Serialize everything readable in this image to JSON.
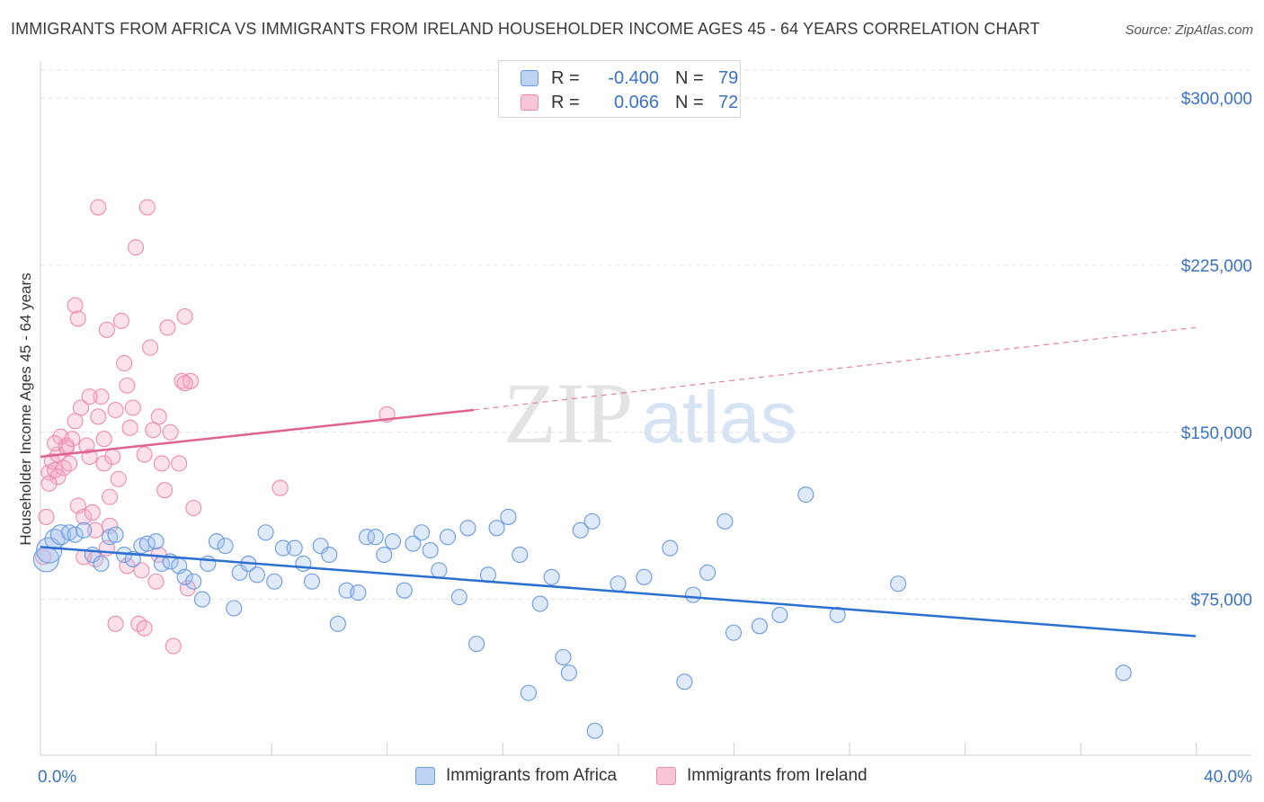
{
  "title": "IMMIGRANTS FROM AFRICA VS IMMIGRANTS FROM IRELAND HOUSEHOLDER INCOME AGES 45 - 64 YEARS CORRELATION CHART",
  "source": "Source: ZipAtlas.com",
  "watermark": {
    "zip": "ZIP",
    "atlas": "atlas"
  },
  "legend": {
    "rows": [
      {
        "r_label": "R =",
        "r_value": "-0.400",
        "n_label": "N =",
        "n_value": "79"
      },
      {
        "r_label": "R =",
        "r_value": "0.066",
        "n_label": "N =",
        "n_value": "72"
      }
    ]
  },
  "chart_data": {
    "type": "scatter",
    "title": "IMMIGRANTS FROM AFRICA VS IMMIGRANTS FROM IRELAND HOUSEHOLDER INCOME AGES 45 - 64 YEARS CORRELATION CHART",
    "xlabel": "",
    "ylabel": "Householder Income Ages 45 - 64 years",
    "xlim": [
      0,
      40
    ],
    "ylim": [
      5000,
      315000
    ],
    "x_tick_labels": [
      "0.0%",
      "40.0%"
    ],
    "y_ticks": [
      75000,
      150000,
      225000,
      300000
    ],
    "y_tick_labels": [
      "$75,000",
      "$150,000",
      "$225,000",
      "$300,000"
    ],
    "grid": true,
    "legend_position": "top-center",
    "colors": {
      "africa": "#6a9ae0",
      "ireland": "#f08bb0",
      "africa_line": "#2a6fd1",
      "ireland_line": "#e0628f"
    },
    "series": [
      {
        "name": "Immigrants from Africa",
        "r": -0.4,
        "n": 79,
        "trend": {
          "x0": 0,
          "y0": 98500,
          "x1": 40,
          "y1": 58500
        },
        "points": [
          [
            0.2,
            93000
          ],
          [
            0.3,
            97000
          ],
          [
            0.5,
            102000
          ],
          [
            0.7,
            104000
          ],
          [
            1.0,
            105000
          ],
          [
            1.2,
            104000
          ],
          [
            1.5,
            106000
          ],
          [
            1.8,
            95000
          ],
          [
            2.1,
            91000
          ],
          [
            2.4,
            103000
          ],
          [
            2.6,
            104000
          ],
          [
            2.9,
            95000
          ],
          [
            3.2,
            93000
          ],
          [
            3.5,
            99000
          ],
          [
            3.7,
            100000
          ],
          [
            4.0,
            101000
          ],
          [
            4.2,
            91000
          ],
          [
            4.5,
            92000
          ],
          [
            4.8,
            90000
          ],
          [
            5.0,
            85000
          ],
          [
            5.3,
            83000
          ],
          [
            5.6,
            75000
          ],
          [
            5.8,
            91000
          ],
          [
            6.1,
            101000
          ],
          [
            6.4,
            99000
          ],
          [
            6.7,
            71000
          ],
          [
            6.9,
            87000
          ],
          [
            7.2,
            91000
          ],
          [
            7.5,
            86000
          ],
          [
            7.8,
            105000
          ],
          [
            8.1,
            83000
          ],
          [
            8.4,
            98000
          ],
          [
            8.8,
            98000
          ],
          [
            9.1,
            91000
          ],
          [
            9.4,
            83000
          ],
          [
            9.7,
            99000
          ],
          [
            10.0,
            95000
          ],
          [
            10.3,
            64000
          ],
          [
            10.6,
            79000
          ],
          [
            11.0,
            78000
          ],
          [
            11.3,
            103000
          ],
          [
            11.6,
            103000
          ],
          [
            11.9,
            95000
          ],
          [
            12.2,
            101000
          ],
          [
            12.6,
            79000
          ],
          [
            12.9,
            100000
          ],
          [
            13.2,
            105000
          ],
          [
            13.5,
            97000
          ],
          [
            13.8,
            88000
          ],
          [
            14.1,
            103000
          ],
          [
            14.5,
            76000
          ],
          [
            14.8,
            107000
          ],
          [
            15.1,
            55000
          ],
          [
            15.5,
            86000
          ],
          [
            15.8,
            107000
          ],
          [
            16.2,
            112000
          ],
          [
            16.6,
            95000
          ],
          [
            16.9,
            33000
          ],
          [
            17.3,
            73000
          ],
          [
            17.7,
            85000
          ],
          [
            18.1,
            49000
          ],
          [
            18.3,
            42000
          ],
          [
            18.7,
            106000
          ],
          [
            19.1,
            110000
          ],
          [
            19.2,
            16000
          ],
          [
            20.0,
            82000
          ],
          [
            20.9,
            85000
          ],
          [
            21.8,
            98000
          ],
          [
            22.3,
            38000
          ],
          [
            22.6,
            77000
          ],
          [
            23.1,
            87000
          ],
          [
            23.7,
            110000
          ],
          [
            24.0,
            60000
          ],
          [
            24.9,
            63000
          ],
          [
            25.6,
            68000
          ],
          [
            26.5,
            122000
          ],
          [
            27.6,
            68000
          ],
          [
            29.7,
            82000
          ],
          [
            37.5,
            42000
          ]
        ]
      },
      {
        "name": "Immigrants from Ireland",
        "r": 0.066,
        "n": 72,
        "trend": {
          "x0": 0,
          "y0": 139000,
          "x1": 15,
          "y1": 160000,
          "x_dash_end": 40,
          "y_dash_end": 197000
        },
        "points": [
          [
            0.1,
            94000
          ],
          [
            0.2,
            112000
          ],
          [
            0.3,
            132000
          ],
          [
            0.4,
            137000
          ],
          [
            0.5,
            133000
          ],
          [
            0.6,
            140000
          ],
          [
            0.7,
            148000
          ],
          [
            0.8,
            134000
          ],
          [
            0.9,
            144000
          ],
          [
            1.0,
            136000
          ],
          [
            1.1,
            147000
          ],
          [
            1.2,
            155000
          ],
          [
            1.3,
            117000
          ],
          [
            1.4,
            161000
          ],
          [
            1.5,
            112000
          ],
          [
            1.6,
            144000
          ],
          [
            1.7,
            139000
          ],
          [
            1.8,
            114000
          ],
          [
            1.9,
            106000
          ],
          [
            2.0,
            157000
          ],
          [
            2.1,
            166000
          ],
          [
            2.2,
            136000
          ],
          [
            2.3,
            98000
          ],
          [
            2.4,
            121000
          ],
          [
            2.5,
            139000
          ],
          [
            2.6,
            160000
          ],
          [
            2.7,
            129000
          ],
          [
            2.8,
            200000
          ],
          [
            2.0,
            251000
          ],
          [
            2.9,
            181000
          ],
          [
            3.0,
            171000
          ],
          [
            3.1,
            152000
          ],
          [
            3.2,
            161000
          ],
          [
            3.3,
            233000
          ],
          [
            3.4,
            64000
          ],
          [
            3.5,
            88000
          ],
          [
            3.6,
            62000
          ],
          [
            3.7,
            251000
          ],
          [
            3.8,
            188000
          ],
          [
            3.9,
            151000
          ],
          [
            4.0,
            83000
          ],
          [
            4.1,
            157000
          ],
          [
            4.2,
            136000
          ],
          [
            4.3,
            124000
          ],
          [
            4.4,
            197000
          ],
          [
            4.5,
            150000
          ],
          [
            4.6,
            54000
          ],
          [
            4.8,
            136000
          ],
          [
            4.9,
            173000
          ],
          [
            5.0,
            202000
          ],
          [
            5.1,
            80000
          ],
          [
            5.2,
            173000
          ],
          [
            5.3,
            116000
          ],
          [
            1.9,
            93000
          ],
          [
            1.3,
            201000
          ],
          [
            0.9,
            143000
          ],
          [
            2.3,
            196000
          ],
          [
            1.5,
            94000
          ],
          [
            2.6,
            64000
          ],
          [
            0.6,
            130000
          ],
          [
            3.0,
            90000
          ],
          [
            12.0,
            158000
          ],
          [
            8.3,
            125000
          ],
          [
            5.0,
            172000
          ],
          [
            2.2,
            147000
          ],
          [
            1.2,
            207000
          ],
          [
            0.5,
            145000
          ],
          [
            3.6,
            140000
          ],
          [
            1.7,
            166000
          ],
          [
            2.4,
            108000
          ],
          [
            0.3,
            127000
          ],
          [
            4.1,
            95000
          ]
        ]
      }
    ]
  },
  "bottom_legend": {
    "items": [
      {
        "label": "Immigrants from Africa"
      },
      {
        "label": "Immigrants from Ireland"
      }
    ]
  }
}
